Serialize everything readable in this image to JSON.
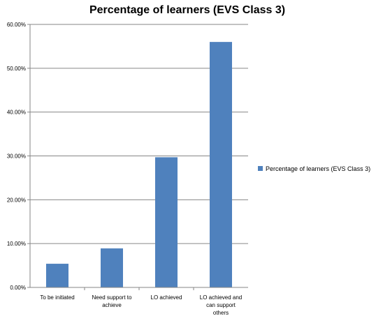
{
  "chart_data": {
    "type": "bar",
    "title": "Percentage of learners (EVS Class 3)",
    "xlabel": "",
    "ylabel": "",
    "categories": [
      [
        "To be initiated"
      ],
      [
        "Need support to",
        "achieve"
      ],
      [
        "LO achieved"
      ],
      [
        "LO achieved and",
        "can support",
        "others"
      ]
    ],
    "series": [
      {
        "name": "Percentage of learners (EVS Class 3)",
        "color": "#4F81BD",
        "values": [
          5.4,
          8.9,
          29.7,
          56.0
        ]
      }
    ],
    "ylim": [
      0,
      60
    ],
    "yticks": [
      0,
      10,
      20,
      30,
      40,
      50,
      60
    ],
    "ytick_labels": [
      "0.00%",
      "10.00%",
      "20.00%",
      "30.00%",
      "40.00%",
      "50.00%",
      "60.00%"
    ],
    "grid": true,
    "legend_position": "right"
  }
}
